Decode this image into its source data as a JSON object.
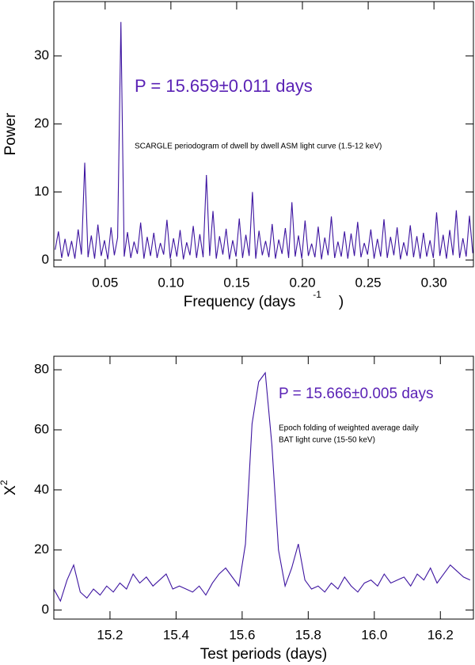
{
  "chart_data": [
    {
      "type": "line",
      "color": "#3d14a0",
      "x_label_parts": [
        "Frequency (days",
        "-1",
        ")"
      ],
      "y_label_parts": [
        "Power"
      ],
      "annotations": [
        "P = 15.659±0.011 days",
        "SCARGLE periodogram of dwell by dwell ASM light curve (1.5-12 keV)"
      ],
      "annotation_color": "#5a22b5",
      "xlim": [
        0.011,
        0.33
      ],
      "ylim": [
        -1,
        38
      ],
      "xticks": [
        {
          "value": 0.05,
          "label": "0.05"
        },
        {
          "value": 0.1,
          "label": "0.10"
        },
        {
          "value": 0.15,
          "label": "0.15"
        },
        {
          "value": 0.2,
          "label": "0.20"
        },
        {
          "value": 0.25,
          "label": "0.25"
        },
        {
          "value": 0.3,
          "label": "0.30"
        }
      ],
      "yticks": [
        0,
        10,
        20,
        30
      ],
      "x": [
        0.012,
        0.0145,
        0.017,
        0.0195,
        0.022,
        0.0245,
        0.027,
        0.0295,
        0.032,
        0.0345,
        0.037,
        0.0395,
        0.042,
        0.0445,
        0.047,
        0.0495,
        0.052,
        0.0545,
        0.057,
        0.0595,
        0.062,
        0.0645,
        0.067,
        0.0695,
        0.072,
        0.0745,
        0.077,
        0.0795,
        0.082,
        0.0845,
        0.087,
        0.0895,
        0.092,
        0.0945,
        0.097,
        0.0995,
        0.102,
        0.1045,
        0.107,
        0.1095,
        0.112,
        0.1145,
        0.117,
        0.1195,
        0.122,
        0.1245,
        0.127,
        0.1295,
        0.132,
        0.1345,
        0.137,
        0.1395,
        0.142,
        0.1445,
        0.147,
        0.1495,
        0.152,
        0.1545,
        0.157,
        0.1595,
        0.162,
        0.1645,
        0.167,
        0.1695,
        0.172,
        0.1745,
        0.177,
        0.1795,
        0.182,
        0.1845,
        0.187,
        0.1895,
        0.192,
        0.1945,
        0.197,
        0.1995,
        0.202,
        0.2045,
        0.207,
        0.2095,
        0.212,
        0.2145,
        0.217,
        0.2195,
        0.222,
        0.2245,
        0.227,
        0.2295,
        0.232,
        0.2345,
        0.237,
        0.2395,
        0.242,
        0.2445,
        0.247,
        0.2495,
        0.252,
        0.2545,
        0.257,
        0.2595,
        0.262,
        0.2645,
        0.267,
        0.2695,
        0.272,
        0.2745,
        0.277,
        0.2795,
        0.282,
        0.2845,
        0.287,
        0.2895,
        0.292,
        0.2945,
        0.297,
        0.2995,
        0.302,
        0.3045,
        0.307,
        0.3095,
        0.312,
        0.3145,
        0.317,
        0.3195,
        0.322,
        0.3245,
        0.327,
        0.3295
      ],
      "values": [
        1.5,
        4.2,
        0.3,
        3.1,
        0.5,
        2.8,
        0.2,
        4.5,
        0.8,
        14.3,
        0.4,
        3.6,
        0.2,
        5.2,
        0.6,
        2.9,
        0.1,
        4.8,
        0.7,
        3.3,
        35.0,
        0.5,
        4.1,
        0.3,
        2.7,
        0.9,
        5.5,
        0.2,
        3.4,
        0.6,
        4.0,
        0.3,
        2.5,
        0.8,
        5.9,
        0.2,
        3.2,
        0.5,
        4.4,
        0.1,
        2.6,
        0.7,
        5.0,
        0.3,
        3.8,
        0.4,
        12.5,
        0.6,
        7.2,
        0.2,
        3.5,
        0.8,
        4.6,
        0.1,
        2.9,
        0.5,
        6.1,
        0.3,
        3.7,
        0.6,
        10.0,
        0.2,
        4.3,
        0.7,
        2.8,
        0.4,
        5.3,
        0.2,
        3.0,
        0.9,
        4.7,
        0.3,
        8.5,
        0.5,
        3.6,
        0.2,
        5.8,
        0.6,
        2.4,
        0.4,
        4.9,
        0.1,
        3.3,
        0.7,
        6.4,
        0.3,
        2.7,
        0.5,
        4.2,
        0.2,
        3.9,
        0.6,
        5.6,
        0.4,
        2.5,
        0.8,
        4.5,
        0.2,
        3.1,
        0.5,
        6.0,
        0.3,
        3.4,
        0.7,
        4.8,
        0.1,
        2.6,
        0.6,
        5.1,
        0.4,
        3.5,
        0.2,
        4.0,
        0.5,
        2.9,
        0.3,
        7.0,
        0.6,
        3.7,
        0.2,
        4.4,
        0.7,
        7.3,
        0.3,
        3.2,
        0.5,
        6.5,
        1.0
      ]
    },
    {
      "type": "line",
      "color": "#3d14a0",
      "x_label_parts": [
        "Test periods (days)"
      ],
      "y_label_parts": [
        "X",
        "2"
      ],
      "annotations": [
        "P = 15.666±0.005 days",
        "Epoch folding of weighted average daily",
        "BAT light curve (15-50 keV)"
      ],
      "annotation_color": "#5a22b5",
      "xlim": [
        15.03,
        16.3
      ],
      "ylim": [
        -3,
        84.5
      ],
      "xticks": [
        15.2,
        15.4,
        15.6,
        15.8,
        {
          "value": 16.0,
          "label": "16.0"
        },
        16.2
      ],
      "yticks": [
        0,
        20,
        40,
        60,
        80
      ],
      "x": [
        15.03,
        15.05,
        15.07,
        15.09,
        15.11,
        15.13,
        15.15,
        15.17,
        15.19,
        15.21,
        15.23,
        15.25,
        15.27,
        15.29,
        15.31,
        15.33,
        15.35,
        15.37,
        15.39,
        15.41,
        15.43,
        15.45,
        15.47,
        15.49,
        15.51,
        15.53,
        15.55,
        15.57,
        15.59,
        15.61,
        15.63,
        15.65,
        15.67,
        15.69,
        15.71,
        15.73,
        15.75,
        15.77,
        15.79,
        15.81,
        15.83,
        15.85,
        15.87,
        15.89,
        15.91,
        15.93,
        15.95,
        15.97,
        15.99,
        16.01,
        16.03,
        16.05,
        16.07,
        16.09,
        16.11,
        16.13,
        16.15,
        16.17,
        16.19,
        16.21,
        16.23,
        16.25,
        16.27,
        16.29
      ],
      "values": [
        7,
        3,
        10,
        15,
        6,
        4,
        7,
        5,
        8,
        6,
        9,
        7,
        12,
        9,
        11,
        8,
        10,
        12,
        7,
        8,
        7,
        6,
        8,
        5,
        9,
        12,
        14,
        11,
        8,
        22,
        62,
        76,
        79,
        55,
        20,
        8,
        14,
        22,
        10,
        7,
        8,
        6,
        9,
        7,
        11,
        8,
        6,
        9,
        10,
        8,
        12,
        9,
        10,
        11,
        8,
        12,
        10,
        14,
        9,
        12,
        15,
        13,
        11,
        10
      ]
    }
  ]
}
